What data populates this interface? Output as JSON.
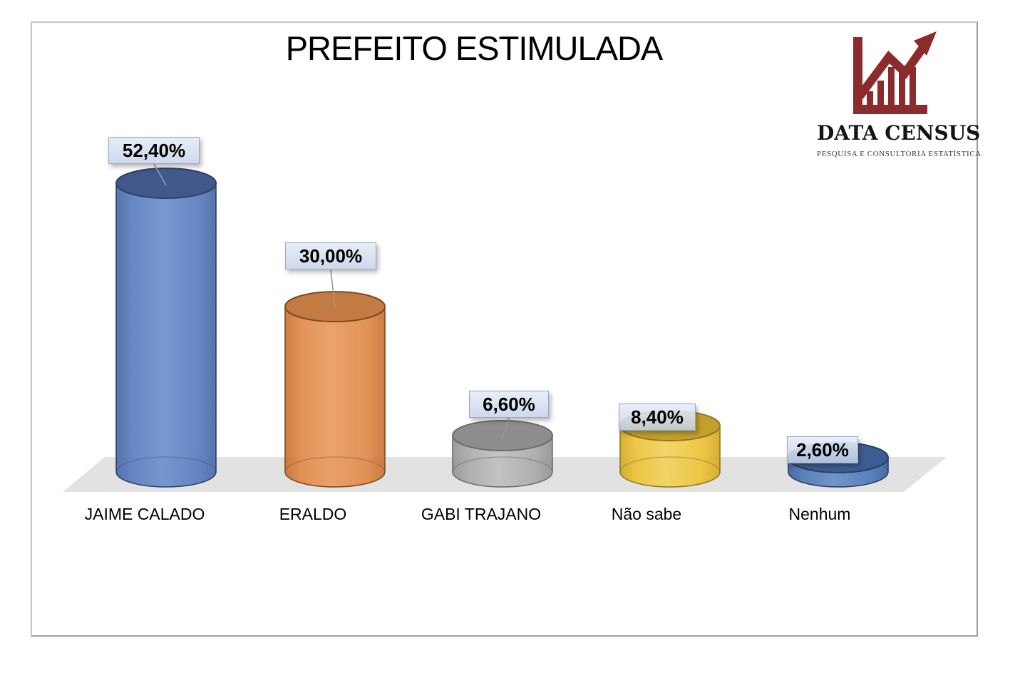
{
  "chart_data": {
    "type": "bar",
    "style": "3d-cylinder",
    "title": "PREFEITO ESTIMULADA",
    "categories": [
      "JAIME CALADO",
      "ERALDO",
      "GABI TRAJANO",
      "Não sabe",
      "Nenhum"
    ],
    "values": [
      52.4,
      30.0,
      6.6,
      8.4,
      2.6
    ],
    "value_labels": [
      "52,40%",
      "30,00%",
      "6,60%",
      "8,40%",
      "2,60%"
    ],
    "unit": "%",
    "ylim": [
      0,
      60
    ],
    "grid": false,
    "legend": false,
    "bar_colors": [
      {
        "edge": "#4a6aa8",
        "body": "#5b7ec0",
        "light": "#6f90cd",
        "top": "#41588a",
        "rim": "#2e4066"
      },
      {
        "edge": "#c97337",
        "body": "#e08a4a",
        "light": "#e99c61",
        "top": "#c47a43",
        "rim": "#7e4a1f"
      },
      {
        "edge": "#949494",
        "body": "#ababab",
        "light": "#c0c0c0",
        "top": "#8d8d8d",
        "rim": "#6d6d6d"
      },
      {
        "edge": "#d4a92a",
        "body": "#ecc337",
        "light": "#f1d35e",
        "top": "#c3a02c",
        "rim": "#8f7a1e"
      },
      {
        "edge": "#3f63a0",
        "body": "#4f7ab7",
        "light": "#6a8fc6",
        "top": "#3d5d92",
        "rim": "#2b3f63"
      }
    ]
  },
  "colors": {
    "floor": "#e2e2e2",
    "leader_line": "#9a9a9a",
    "label_background": "#d3deef",
    "label_border": "#96a9c6",
    "frame_border": "#c6c6c6",
    "brand": "#8b2b2b"
  },
  "logo": {
    "name": "DATA CENSUS",
    "subtitle": "PESQUISA E CONSULTORIA ESTATÍSTICA",
    "icon": "bar-chart-trend-arrow-icon",
    "brand_color": "#8b2b2b"
  }
}
